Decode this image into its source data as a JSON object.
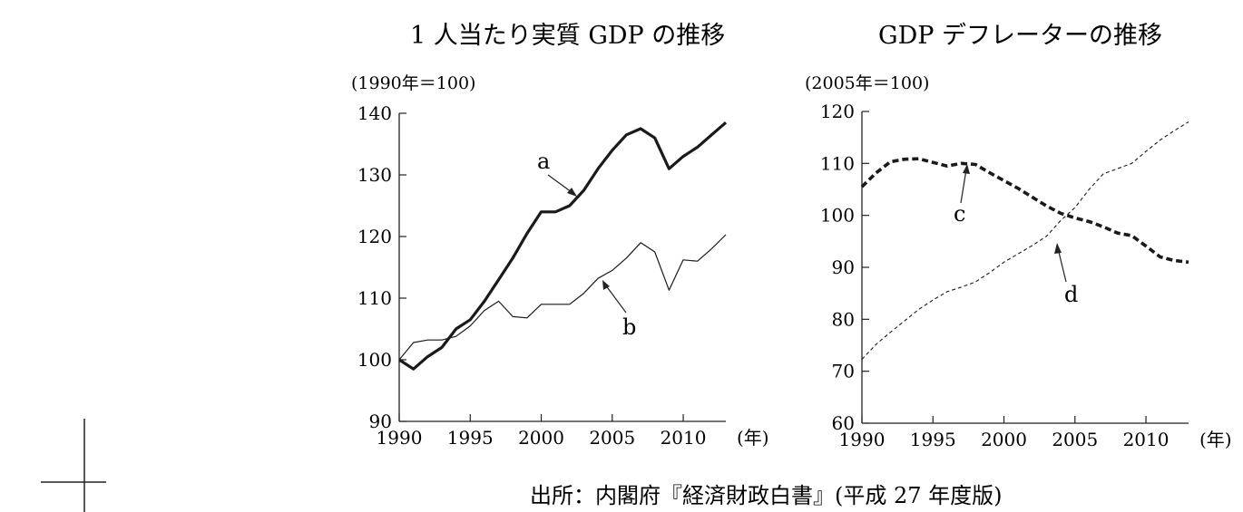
{
  "chart_data": [
    {
      "type": "line",
      "title": "1 人当たり実質 GDP の推移",
      "unit_label": "(1990年＝100)",
      "x_unit": "(年)",
      "xlim": [
        1990,
        2013
      ],
      "ylim": [
        90,
        140
      ],
      "x_ticks": [
        "1990",
        "1995",
        "2000",
        "2005",
        "2010"
      ],
      "y_ticks": [
        "140",
        "130",
        "120",
        "110",
        "100",
        "90"
      ],
      "grid": false,
      "x": [
        1990,
        1991,
        1992,
        1993,
        1994,
        1995,
        1996,
        1997,
        1998,
        1999,
        2000,
        2001,
        2002,
        2003,
        2004,
        2005,
        2006,
        2007,
        2008,
        2009,
        2010,
        2011,
        2012,
        2013
      ],
      "series": [
        {
          "name": "a",
          "style": "thick-solid",
          "values": [
            100,
            98.5,
            100.5,
            102,
            105,
            106.5,
            109.5,
            113,
            116.5,
            120.5,
            124,
            124,
            125,
            127.5,
            131,
            134,
            136.5,
            137.5,
            136,
            131,
            133,
            134.5,
            136.5,
            138.5
          ]
        },
        {
          "name": "b",
          "style": "thin-solid",
          "values": [
            100,
            102.8,
            103.2,
            103.2,
            103.8,
            105.5,
            108,
            109.5,
            107,
            106.8,
            109,
            109,
            109,
            110.8,
            113.2,
            114.5,
            116.5,
            119,
            117.5,
            111.3,
            116.2,
            116,
            118,
            120.3
          ]
        }
      ]
    },
    {
      "type": "line",
      "title": "GDP デフレーターの推移",
      "unit_label": "(2005年＝100)",
      "x_unit": "(年)",
      "xlim": [
        1990,
        2013
      ],
      "ylim": [
        60,
        120
      ],
      "x_ticks": [
        "1990",
        "1995",
        "2000",
        "2005",
        "2010"
      ],
      "y_ticks": [
        "120",
        "110",
        "100",
        "90",
        "80",
        "70",
        "60"
      ],
      "grid": false,
      "x": [
        1990,
        1991,
        1992,
        1993,
        1994,
        1995,
        1996,
        1997,
        1998,
        1999,
        2000,
        2001,
        2002,
        2003,
        2004,
        2005,
        2006,
        2007,
        2008,
        2009,
        2010,
        2011,
        2012,
        2013
      ],
      "series": [
        {
          "name": "c",
          "style": "thick-dashed",
          "values": [
            105.5,
            108.2,
            110.3,
            110.8,
            110.9,
            110.2,
            109.5,
            110,
            109.8,
            108.2,
            106.7,
            105.2,
            103.5,
            101.8,
            100.4,
            99.5,
            98.8,
            97.8,
            96.6,
            96.1,
            94.1,
            92,
            91.3,
            91
          ]
        },
        {
          "name": "d",
          "style": "thin-dashed",
          "values": [
            72.3,
            75.2,
            77.5,
            79.7,
            81.9,
            83.7,
            85.3,
            86.2,
            87.2,
            89,
            91,
            92.6,
            94.2,
            96,
            99,
            101.5,
            105,
            108,
            109,
            110,
            112.3,
            114.5,
            116.3,
            118
          ]
        }
      ]
    }
  ],
  "source": "出所：内閣府『経済財政白書』(平成 27 年度版)"
}
